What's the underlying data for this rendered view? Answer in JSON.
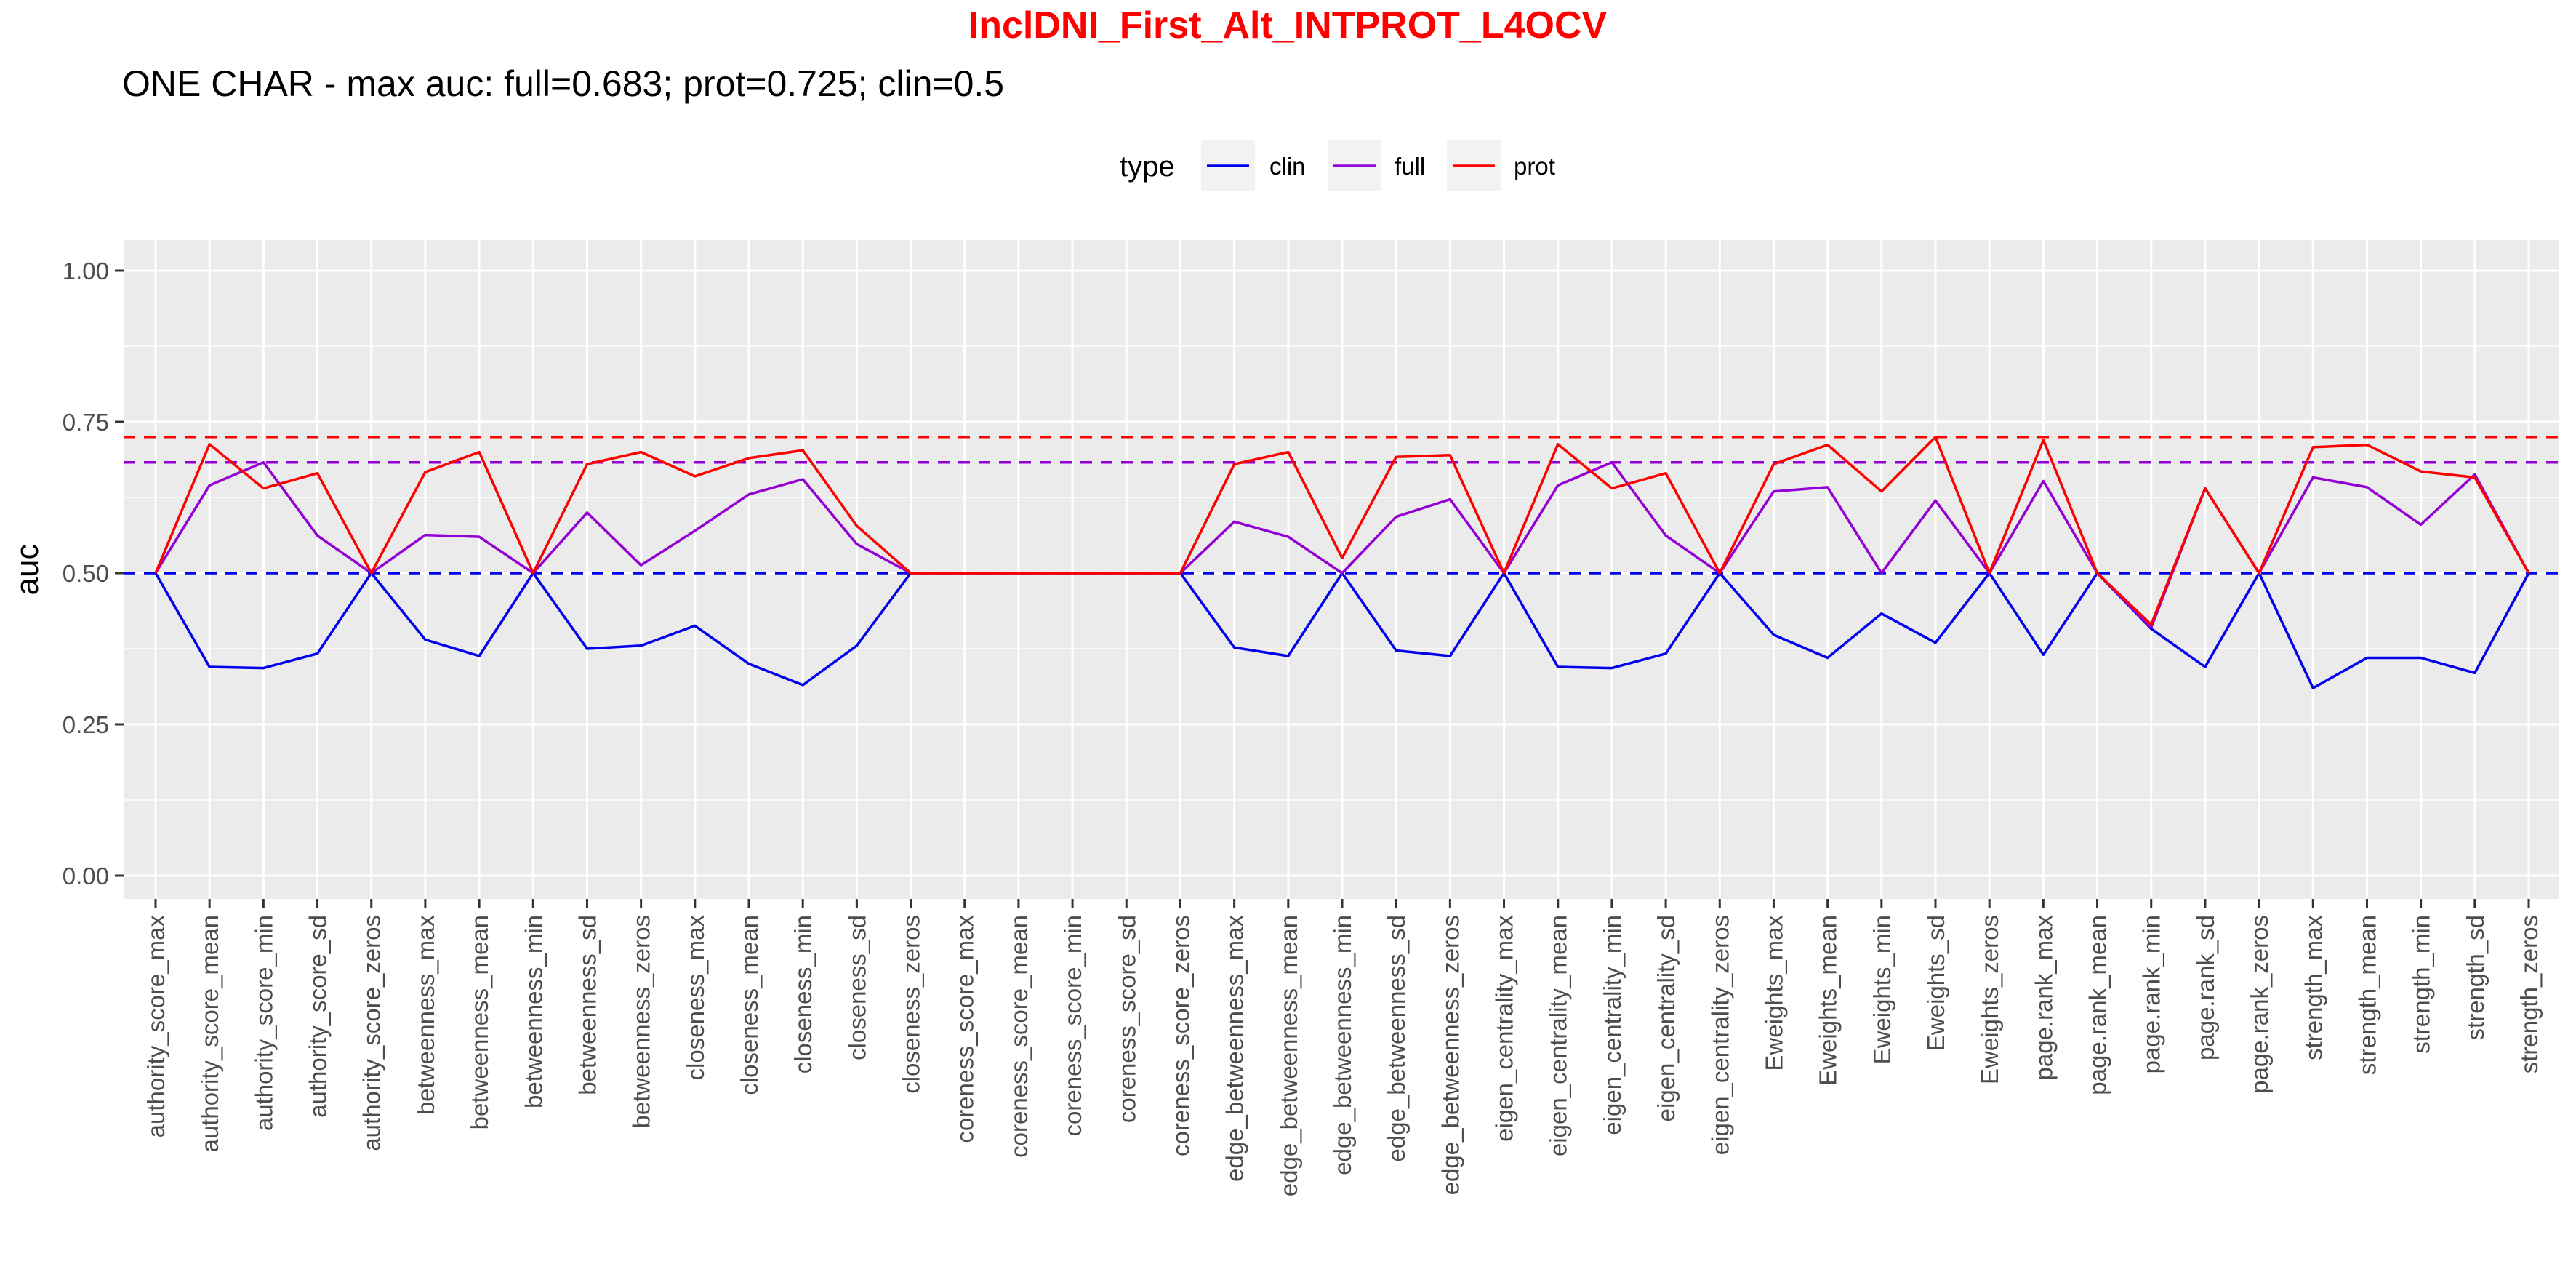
{
  "chart_data": {
    "type": "line",
    "title": "InclDNI_First_Alt_INTPROT_L4OCV",
    "subtitle": "ONE CHAR - max auc: full=0.683; prot=0.725; clin=0.5",
    "xlabel": "",
    "ylabel": "auc",
    "ylim": [
      0,
      1
    ],
    "yticks": [
      "0.00",
      "0.25",
      "0.50",
      "0.75",
      "1.00"
    ],
    "grid": true,
    "legend": {
      "title": "type",
      "position": "top"
    },
    "categories": [
      "authority_score_max",
      "authority_score_mean",
      "authority_score_min",
      "authority_score_sd",
      "authority_score_zeros",
      "betweenness_max",
      "betweenness_mean",
      "betweenness_min",
      "betweenness_sd",
      "betweenness_zeros",
      "closeness_max",
      "closeness_mean",
      "closeness_min",
      "closeness_sd",
      "closeness_zeros",
      "coreness_score_max",
      "coreness_score_mean",
      "coreness_score_min",
      "coreness_score_sd",
      "coreness_score_zeros",
      "edge_betweenness_max",
      "edge_betweenness_mean",
      "edge_betweenness_min",
      "edge_betweenness_sd",
      "edge_betweenness_zeros",
      "eigen_centrality_max",
      "eigen_centrality_mean",
      "eigen_centrality_min",
      "eigen_centrality_sd",
      "eigen_centrality_zeros",
      "Eweights_max",
      "Eweights_mean",
      "Eweights_min",
      "Eweights_sd",
      "Eweights_zeros",
      "page.rank_max",
      "page.rank_mean",
      "page.rank_min",
      "page.rank_sd",
      "page.rank_zeros",
      "strength_max",
      "strength_mean",
      "strength_min",
      "strength_sd",
      "strength_zeros"
    ],
    "series": [
      {
        "name": "clin",
        "color": "#0000ee",
        "values": [
          0.5,
          0.345,
          0.343,
          0.367,
          0.5,
          0.39,
          0.363,
          0.5,
          0.375,
          0.38,
          0.413,
          0.35,
          0.315,
          0.38,
          0.5,
          0.5,
          0.5,
          0.5,
          0.5,
          0.5,
          0.377,
          0.363,
          0.5,
          0.372,
          0.363,
          0.5,
          0.345,
          0.343,
          0.367,
          0.5,
          0.398,
          0.36,
          0.433,
          0.385,
          0.5,
          0.365,
          0.5,
          0.408,
          0.345,
          0.5,
          0.31,
          0.36,
          0.36,
          0.335,
          0.5
        ]
      },
      {
        "name": "full",
        "color": "#9400d3",
        "values": [
          0.5,
          0.645,
          0.683,
          0.562,
          0.5,
          0.563,
          0.56,
          0.5,
          0.6,
          0.513,
          0.57,
          0.63,
          0.655,
          0.548,
          0.5,
          0.5,
          0.5,
          0.5,
          0.5,
          0.5,
          0.585,
          0.56,
          0.5,
          0.593,
          0.622,
          0.5,
          0.645,
          0.683,
          0.562,
          0.5,
          0.635,
          0.642,
          0.5,
          0.62,
          0.5,
          0.652,
          0.5,
          0.41,
          0.64,
          0.5,
          0.658,
          0.642,
          0.58,
          0.663,
          0.5
        ]
      },
      {
        "name": "prot",
        "color": "#ff0000",
        "values": [
          0.5,
          0.713,
          0.64,
          0.665,
          0.5,
          0.667,
          0.7,
          0.5,
          0.68,
          0.7,
          0.66,
          0.69,
          0.703,
          0.578,
          0.5,
          0.5,
          0.5,
          0.5,
          0.5,
          0.5,
          0.68,
          0.7,
          0.525,
          0.692,
          0.695,
          0.5,
          0.713,
          0.64,
          0.665,
          0.5,
          0.68,
          0.712,
          0.635,
          0.725,
          0.5,
          0.72,
          0.5,
          0.415,
          0.64,
          0.5,
          0.708,
          0.712,
          0.668,
          0.658,
          0.5
        ]
      }
    ],
    "reference_lines": [
      {
        "series": "prot",
        "y": 0.725,
        "color": "#ff0000",
        "style": "dashed"
      },
      {
        "series": "full",
        "y": 0.683,
        "color": "#9400d3",
        "style": "dashed"
      },
      {
        "series": "clin",
        "y": 0.5,
        "color": "#0000ee",
        "style": "dashed"
      }
    ]
  }
}
